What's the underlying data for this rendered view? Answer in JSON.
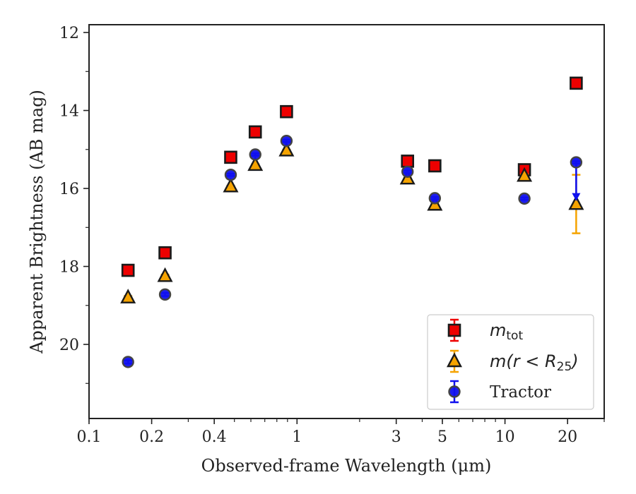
{
  "chart_data": {
    "type": "scatter",
    "xlabel": "Observed-frame Wavelength (μm)",
    "ylabel": "Apparent Brightness (AB mag)",
    "xscale": "log",
    "xlim": [
      0.1,
      30
    ],
    "ylim": [
      21.9,
      11.8
    ],
    "y_inverted": true,
    "x_ticks": [
      0.1,
      0.2,
      0.4,
      1,
      3,
      5,
      10,
      20
    ],
    "x_tick_labels": [
      "0.1",
      "0.2",
      "0.4",
      "1",
      "3",
      "5",
      "10",
      "20"
    ],
    "y_ticks": [
      12,
      14,
      16,
      18,
      20
    ],
    "y_tick_labels": [
      "12",
      "14",
      "16",
      "18",
      "20"
    ],
    "grid": false,
    "legend_position": "lower-right",
    "series": [
      {
        "name": "m_tot",
        "label_main": "m",
        "label_sub": "tot",
        "marker": "square",
        "color": "#ee0000",
        "x": [
          0.154,
          0.232,
          0.48,
          0.63,
          0.89,
          3.4,
          4.6,
          12.4,
          22
        ],
        "y": [
          18.1,
          17.65,
          15.2,
          14.55,
          14.03,
          15.3,
          15.42,
          15.52,
          13.3
        ],
        "yerr": [
          0.04,
          0.04,
          0.02,
          0.02,
          0.02,
          0.02,
          0.02,
          0.03,
          0.05
        ]
      },
      {
        "name": "m(r < R_25)",
        "label_main": "m(r < R",
        "label_sub": "25",
        "label_close": ")",
        "marker": "triangle",
        "color": "#f5a300",
        "x": [
          0.154,
          0.232,
          0.48,
          0.63,
          0.89,
          3.4,
          4.6,
          12.4,
          22
        ],
        "y": [
          18.8,
          18.25,
          15.95,
          15.4,
          15.03,
          15.75,
          16.42,
          15.68,
          16.4
        ],
        "yerr": [
          0.04,
          0.04,
          0.02,
          0.02,
          0.02,
          0.02,
          0.02,
          0.04,
          0.75
        ]
      },
      {
        "name": "Tractor",
        "label_main": "Tractor",
        "marker": "circle",
        "color": "#1010ee",
        "x": [
          0.154,
          0.232,
          0.48,
          0.63,
          0.89,
          3.4,
          4.6,
          12.4,
          22
        ],
        "y": [
          20.45,
          18.72,
          15.65,
          15.13,
          14.78,
          15.57,
          16.25,
          16.26,
          15.33
        ],
        "yerr": [
          0.04,
          0.04,
          0.03,
          0.03,
          0.03,
          0.03,
          0.03,
          0.03,
          0.03
        ],
        "arrow_index": 8,
        "arrow_to": 16.3
      }
    ]
  }
}
